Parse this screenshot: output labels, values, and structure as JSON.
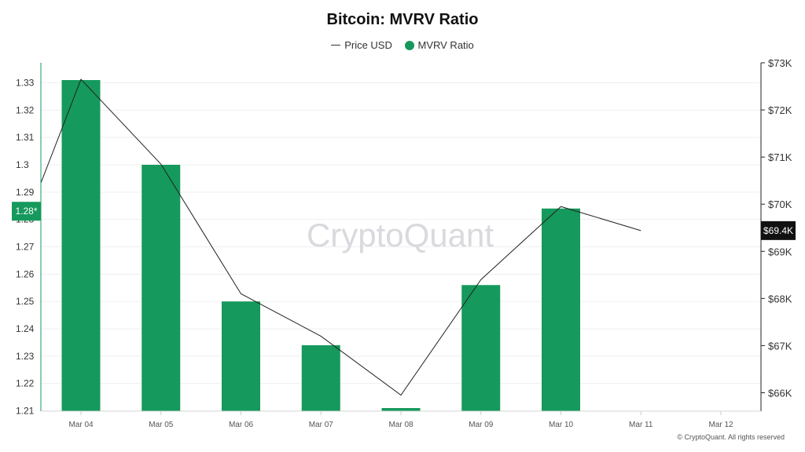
{
  "chart_data": {
    "type": "bar",
    "title": "Bitcoin: MVRV Ratio",
    "categories": [
      "Mar 04",
      "Mar 05",
      "Mar 06",
      "Mar 07",
      "Mar 08",
      "Mar 09",
      "Mar 10",
      "Mar 11",
      "Mar 12"
    ],
    "series": [
      {
        "name": "MVRV Ratio",
        "type": "bar",
        "axis": "left",
        "color": "#15995c",
        "values": [
          1.331,
          1.3,
          1.25,
          1.234,
          1.211,
          1.256,
          1.284,
          null,
          null
        ]
      },
      {
        "name": "Price USD",
        "type": "line",
        "axis": "right",
        "color": "#222222",
        "values": [
          72650,
          70850,
          68100,
          67200,
          65950,
          68400,
          69950,
          69440,
          null
        ]
      }
    ],
    "price_line_start_value": 70450,
    "left_axis": {
      "ylim": [
        1.205,
        1.335
      ],
      "ticks": [
        1.21,
        1.22,
        1.23,
        1.24,
        1.25,
        1.26,
        1.27,
        1.28,
        1.29,
        1.3,
        1.31,
        1.32,
        1.33
      ],
      "tick_labels": [
        "1.21",
        "1.22",
        "1.23",
        "1.24",
        "1.25",
        "1.26",
        "1.27",
        "1.28",
        "1.29",
        "1.3",
        "1.31",
        "1.32",
        "1.33"
      ]
    },
    "right_axis": {
      "ylim": [
        65700,
        73000
      ],
      "ticks": [
        66000,
        67000,
        68000,
        69000,
        70000,
        71000,
        72000,
        73000
      ],
      "tick_labels": [
        "$66K",
        "$67K",
        "$68K",
        "$69K",
        "$70K",
        "$71K",
        "$72K",
        "$73K"
      ]
    },
    "left_marker": {
      "value": 1.283,
      "label": "1.28*",
      "color": "#15995c"
    },
    "right_marker": {
      "value": 69440,
      "label": "$69.4K",
      "color": "#111111"
    },
    "watermark": "CryptoQuant",
    "grid": true,
    "legend_position": "top-center"
  },
  "footer": {
    "copyright": "© CryptoQuant. All rights reserved"
  }
}
